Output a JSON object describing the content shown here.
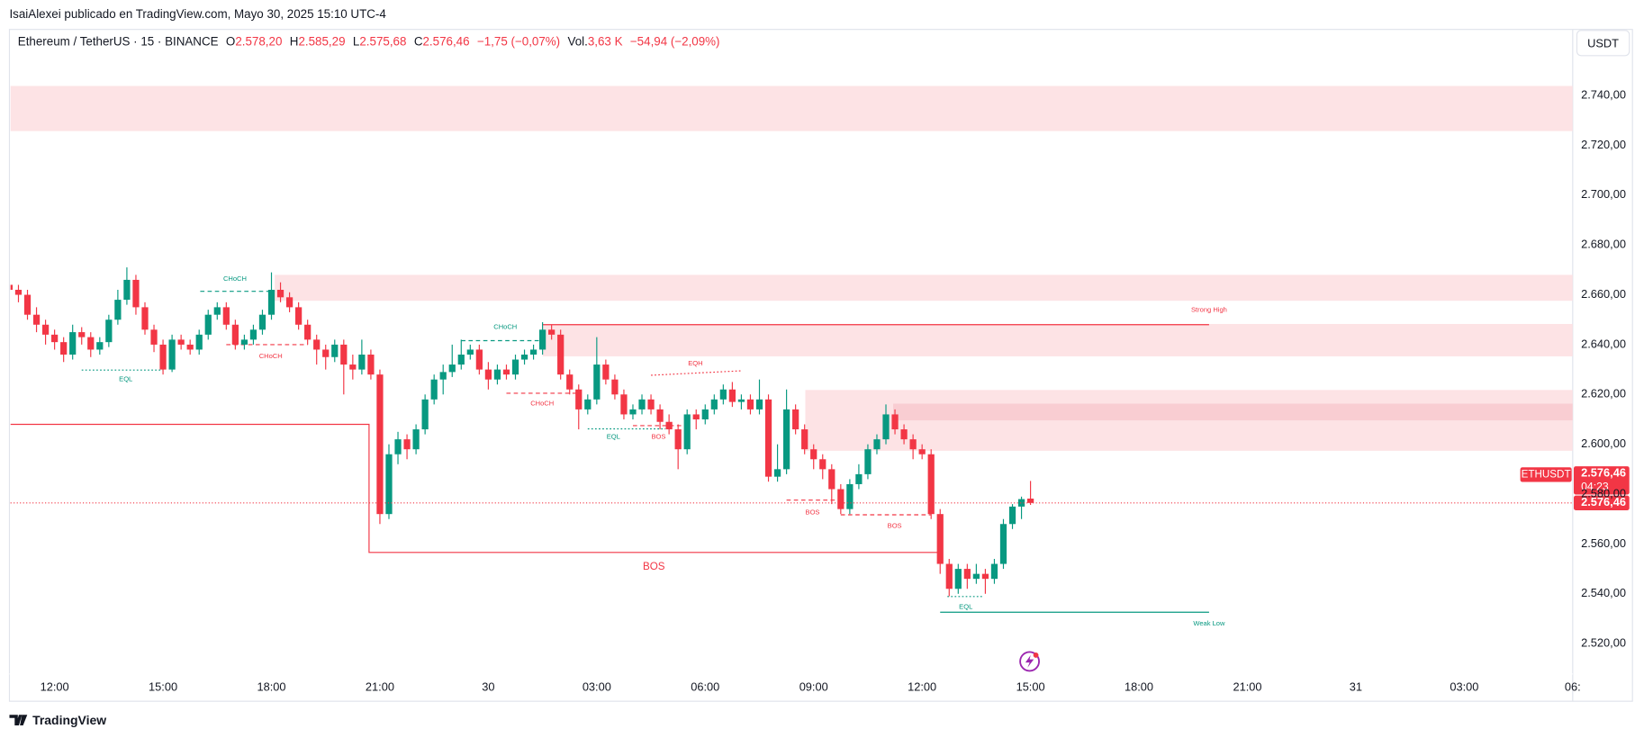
{
  "header": {
    "publisher": "IsaiAlexei publicado en TradingView.com, Mayo 30, 2025 15:10 UTC-4",
    "brand": "TradingView",
    "currency": "USDT"
  },
  "chart_data": {
    "type": "candlestick",
    "symbol": "Ethereum / TetherUS · 15 · BINANCE",
    "legend": {
      "o": "O",
      "o_value": "2.578,20",
      "h": "H",
      "h_value": "2.585,29",
      "l": "L",
      "l_value": "2.575,68",
      "c": "C",
      "c_value": "2.576,46",
      "change": "−1,75 (−0,07%)",
      "vol": "Vol.",
      "vol_value": "3,63 K",
      "vol_change": "−54,94 (−2,09%)"
    },
    "x": [
      10.75,
      11,
      11.25,
      11.5,
      11.75,
      12,
      12.25,
      12.5,
      12.75,
      13,
      13.25,
      13.5,
      13.75,
      14,
      14.25,
      14.5,
      14.75,
      15,
      15.25,
      15.5,
      15.75,
      16,
      16.25,
      16.5,
      16.75,
      17,
      17.25,
      17.5,
      17.75,
      18,
      18.25,
      18.5,
      18.75,
      19,
      19.25,
      19.5,
      19.75,
      20,
      20.25,
      20.5,
      20.75,
      21,
      21.25,
      21.5,
      21.75,
      22,
      22.25,
      22.5,
      22.75,
      23,
      23.25,
      23.5,
      23.75,
      24,
      24.25,
      24.5,
      24.75,
      25,
      25.25,
      25.5,
      25.75,
      26,
      26.25,
      26.5,
      26.75,
      27,
      27.25,
      27.5,
      27.75,
      28,
      28.25,
      28.5,
      28.75,
      29,
      29.25,
      29.5,
      29.75,
      30,
      30.25,
      30.5,
      30.75,
      31,
      31.25,
      31.5,
      31.75,
      32,
      32.25,
      32.5,
      32.75,
      33,
      33.25,
      33.5,
      33.75,
      34,
      34.25,
      34.5,
      34.75,
      35,
      35.25,
      35.5,
      35.75,
      36,
      36.25,
      36.5,
      36.75,
      37,
      37.25,
      37.5,
      37.75,
      38,
      38.25,
      38.5,
      38.75,
      39
    ],
    "candles": [
      [
        2664,
        2668,
        2659,
        2662
      ],
      [
        2662,
        2664,
        2657,
        2660
      ],
      [
        2660,
        2662,
        2650,
        2652
      ],
      [
        2652,
        2655,
        2645,
        2648
      ],
      [
        2648,
        2650,
        2640,
        2644
      ],
      [
        2644,
        2646,
        2638,
        2641
      ],
      [
        2641,
        2643,
        2633,
        2636
      ],
      [
        2636,
        2648,
        2634,
        2645
      ],
      [
        2645,
        2647,
        2640,
        2643
      ],
      [
        2643,
        2645,
        2635,
        2638
      ],
      [
        2638,
        2643,
        2636,
        2641
      ],
      [
        2641,
        2652,
        2639,
        2650
      ],
      [
        2650,
        2662,
        2648,
        2658
      ],
      [
        2658,
        2671,
        2656,
        2666
      ],
      [
        2666,
        2668,
        2652,
        2655
      ],
      [
        2655,
        2657,
        2644,
        2646
      ],
      [
        2646,
        2648,
        2637,
        2640
      ],
      [
        2640,
        2642,
        2628,
        2630
      ],
      [
        2630,
        2644,
        2629,
        2642
      ],
      [
        2642,
        2644,
        2638,
        2640
      ],
      [
        2640,
        2642,
        2636,
        2638
      ],
      [
        2638,
        2646,
        2636,
        2644
      ],
      [
        2644,
        2654,
        2642,
        2652
      ],
      [
        2652,
        2657,
        2650,
        2655
      ],
      [
        2655,
        2657,
        2646,
        2648
      ],
      [
        2648,
        2650,
        2638,
        2640
      ],
      [
        2640,
        2644,
        2638,
        2642
      ],
      [
        2642,
        2648,
        2640,
        2646
      ],
      [
        2646,
        2654,
        2644,
        2652
      ],
      [
        2652,
        2669,
        2650,
        2662
      ],
      [
        2662,
        2665,
        2657,
        2659
      ],
      [
        2659,
        2661,
        2653,
        2655
      ],
      [
        2655,
        2657,
        2646,
        2648
      ],
      [
        2648,
        2650,
        2640,
        2642
      ],
      [
        2642,
        2644,
        2632,
        2638
      ],
      [
        2638,
        2640,
        2630,
        2635
      ],
      [
        2635,
        2642,
        2633,
        2640
      ],
      [
        2640,
        2642,
        2620,
        2632
      ],
      [
        2632,
        2636,
        2626,
        2630
      ],
      [
        2630,
        2642,
        2628,
        2636
      ],
      [
        2636,
        2638,
        2626,
        2628
      ],
      [
        2628,
        2630,
        2568,
        2572
      ],
      [
        2572,
        2600,
        2570,
        2596
      ],
      [
        2596,
        2605,
        2592,
        2602
      ],
      [
        2602,
        2604,
        2594,
        2598
      ],
      [
        2598,
        2608,
        2596,
        2606
      ],
      [
        2606,
        2620,
        2604,
        2618
      ],
      [
        2618,
        2628,
        2616,
        2626
      ],
      [
        2626,
        2632,
        2620,
        2629
      ],
      [
        2629,
        2640,
        2627,
        2632
      ],
      [
        2632,
        2642,
        2630,
        2636
      ],
      [
        2636,
        2640,
        2634,
        2638
      ],
      [
        2638,
        2640,
        2628,
        2630
      ],
      [
        2630,
        2633,
        2622,
        2626
      ],
      [
        2626,
        2632,
        2624,
        2630
      ],
      [
        2630,
        2632,
        2626,
        2628
      ],
      [
        2628,
        2636,
        2626,
        2634
      ],
      [
        2634,
        2638,
        2632,
        2636
      ],
      [
        2636,
        2640,
        2634,
        2638
      ],
      [
        2638,
        2649,
        2636,
        2646
      ],
      [
        2646,
        2648,
        2642,
        2644
      ],
      [
        2644,
        2646,
        2626,
        2628
      ],
      [
        2628,
        2630,
        2620,
        2622
      ],
      [
        2622,
        2624,
        2606,
        2614
      ],
      [
        2614,
        2620,
        2612,
        2618
      ],
      [
        2618,
        2643,
        2616,
        2632
      ],
      [
        2632,
        2634,
        2624,
        2626
      ],
      [
        2626,
        2628,
        2618,
        2620
      ],
      [
        2620,
        2622,
        2610,
        2612
      ],
      [
        2612,
        2616,
        2610,
        2614
      ],
      [
        2614,
        2620,
        2612,
        2618
      ],
      [
        2618,
        2620,
        2612,
        2614
      ],
      [
        2614,
        2616,
        2606,
        2609
      ],
      [
        2609,
        2612,
        2604,
        2606
      ],
      [
        2606,
        2608,
        2590,
        2598
      ],
      [
        2598,
        2614,
        2596,
        2612
      ],
      [
        2612,
        2614,
        2606,
        2610
      ],
      [
        2610,
        2616,
        2608,
        2614
      ],
      [
        2614,
        2620,
        2612,
        2618
      ],
      [
        2618,
        2624,
        2616,
        2622
      ],
      [
        2622,
        2625,
        2615,
        2617
      ],
      [
        2617,
        2620,
        2614,
        2618
      ],
      [
        2618,
        2620,
        2612,
        2614
      ],
      [
        2614,
        2626,
        2612,
        2618
      ],
      [
        2618,
        2620,
        2585,
        2587
      ],
      [
        2587,
        2600,
        2585,
        2590
      ],
      [
        2590,
        2622,
        2588,
        2614
      ],
      [
        2614,
        2616,
        2604,
        2606
      ],
      [
        2606,
        2608,
        2596,
        2598
      ],
      [
        2598,
        2600,
        2590,
        2594
      ],
      [
        2594,
        2596,
        2586,
        2590
      ],
      [
        2590,
        2592,
        2576,
        2582
      ],
      [
        2582,
        2584,
        2572,
        2574
      ],
      [
        2574,
        2586,
        2572,
        2584
      ],
      [
        2584,
        2592,
        2582,
        2588
      ],
      [
        2588,
        2600,
        2586,
        2598
      ],
      [
        2598,
        2604,
        2596,
        2602
      ],
      [
        2602,
        2616,
        2600,
        2612
      ],
      [
        2612,
        2614,
        2604,
        2606
      ],
      [
        2606,
        2608,
        2600,
        2602
      ],
      [
        2602,
        2604,
        2594,
        2598
      ],
      [
        2598,
        2600,
        2594,
        2596
      ],
      [
        2596,
        2598,
        2570,
        2572
      ],
      [
        2572,
        2574,
        2548,
        2552
      ],
      [
        2552,
        2554,
        2539,
        2542
      ],
      [
        2542,
        2552,
        2540,
        2550
      ],
      [
        2550,
        2552,
        2542,
        2546
      ],
      [
        2546,
        2552,
        2544,
        2548
      ],
      [
        2548,
        2550,
        2540,
        2546
      ],
      [
        2546,
        2554,
        2544,
        2552
      ],
      [
        2552,
        2570,
        2550,
        2568
      ],
      [
        2568,
        2576,
        2566,
        2575
      ],
      [
        2575,
        2579,
        2570,
        2578
      ],
      [
        2578.2,
        2585.29,
        2575.68,
        2576.46
      ]
    ],
    "up_color": "#089981",
    "down_color": "#f23645",
    "xlim": [
      10.78,
      54
    ],
    "xticks": [
      {
        "value": 12,
        "label": "12:00"
      },
      {
        "value": 15,
        "label": "15:00"
      },
      {
        "value": 18,
        "label": "18:00"
      },
      {
        "value": 21,
        "label": "21:00"
      },
      {
        "value": 24,
        "label": "30"
      },
      {
        "value": 27,
        "label": "03:00"
      },
      {
        "value": 30,
        "label": "06:00"
      },
      {
        "value": 33,
        "label": "09:00"
      },
      {
        "value": 36,
        "label": "12:00"
      },
      {
        "value": 39,
        "label": "15:00"
      },
      {
        "value": 42,
        "label": "18:00"
      },
      {
        "value": 45,
        "label": "21:00"
      },
      {
        "value": 48,
        "label": "31"
      },
      {
        "value": 51,
        "label": "03:00"
      },
      {
        "value": 54,
        "label": "06:"
      }
    ],
    "ylim": [
      2497.3,
      2766.5
    ],
    "yticks": [
      {
        "value": 2520,
        "label": "2.520,00"
      },
      {
        "value": 2540,
        "label": "2.540,00"
      },
      {
        "value": 2560,
        "label": "2.560,00"
      },
      {
        "value": 2580,
        "label": "2.580,00"
      },
      {
        "value": 2600,
        "label": "2.600,00"
      },
      {
        "value": 2620,
        "label": "2.620,00"
      },
      {
        "value": 2640,
        "label": "2.640,00"
      },
      {
        "value": 2660,
        "label": "2.660,00"
      },
      {
        "value": 2680,
        "label": "2.680,00"
      },
      {
        "value": 2700,
        "label": "2.700,00"
      },
      {
        "value": 2720,
        "label": "2.720,00"
      },
      {
        "value": 2740,
        "label": "2.740,00"
      }
    ],
    "zones": [
      {
        "x": [
          10.78,
          54
        ],
        "y": [
          2725.7,
          2743.8
        ],
        "color": "#fde3e5"
      },
      {
        "x": [
          18.09,
          54
        ],
        "y": [
          2657.6,
          2668
        ],
        "color": "#fde3e5"
      },
      {
        "x": [
          25.5,
          54
        ],
        "y": [
          2635.3,
          2648.3
        ],
        "color": "#fde3e5"
      },
      {
        "x": [
          32.77,
          54
        ],
        "y": [
          2597.4,
          2621.8
        ],
        "color": "#fde3e5"
      },
      {
        "x": [
          35.2,
          54
        ],
        "y": [
          2609.6,
          2616.3
        ],
        "color": "#f9cdd2"
      }
    ],
    "lines": [
      {
        "x": [
          10.78,
          20.7,
          20.7,
          36.46
        ],
        "y": [
          2608,
          2608,
          2556.6,
          2556.6
        ],
        "color": "#f23645",
        "style": "solid",
        "label": "BOS"
      },
      {
        "x": [
          25.5,
          43.94
        ],
        "y": [
          2648,
          2648
        ],
        "color": "#f23645",
        "style": "solid"
      },
      {
        "x": [
          36.5,
          43.94
        ],
        "y": [
          2532.6,
          2532.6
        ],
        "color": "#089981",
        "style": "solid"
      },
      {
        "x": [
          16.03,
          18.09
        ],
        "y": [
          2661.4,
          2661.4
        ],
        "color": "#089981",
        "style": "dashed"
      },
      {
        "x": [
          12.75,
          15
        ],
        "y": [
          2629.8,
          2629.8
        ],
        "color": "#089981",
        "style": "dotted"
      },
      {
        "x": [
          16.75,
          19
        ],
        "y": [
          2640,
          2640
        ],
        "color": "#f23645",
        "style": "dashed"
      },
      {
        "x": [
          23.25,
          25.5
        ],
        "y": [
          2641.6,
          2641.6
        ],
        "color": "#089981",
        "style": "dashed"
      },
      {
        "x": [
          24.5,
          26.5
        ],
        "y": [
          2620.5,
          2620.5
        ],
        "color": "#f23645",
        "style": "dashed"
      },
      {
        "x": [
          28.5,
          31
        ],
        "y": [
          2627.7,
          2629.5
        ],
        "color": "#f23645",
        "style": "dotted"
      },
      {
        "x": [
          26.75,
          28.9
        ],
        "y": [
          2606.2,
          2606.2
        ],
        "color": "#089981",
        "style": "dotted"
      },
      {
        "x": [
          28,
          29.55
        ],
        "y": [
          2607.5,
          2607.5
        ],
        "color": "#f23645",
        "style": "dashed"
      },
      {
        "x": [
          32.25,
          33.75
        ],
        "y": [
          2577.6,
          2577.6
        ],
        "color": "#f23645",
        "style": "dashed"
      },
      {
        "x": [
          33.75,
          36.25
        ],
        "y": [
          2571.7,
          2571.7
        ],
        "color": "#f23645",
        "style": "dashed"
      },
      {
        "x": [
          36.7,
          37.7
        ],
        "y": [
          2538.9,
          2538.9
        ],
        "color": "#089981",
        "style": "dotted"
      }
    ],
    "annotations": [
      {
        "text": "CHoCH",
        "x": 16.99,
        "y": 2666.4,
        "color": "#089981"
      },
      {
        "text": "EQL",
        "x": 13.97,
        "y": 2626,
        "color": "#089981"
      },
      {
        "text": "CHoCH",
        "x": 17.98,
        "y": 2635.3,
        "color": "#f23645"
      },
      {
        "text": "CHoCH",
        "x": 24.47,
        "y": 2647,
        "color": "#089981"
      },
      {
        "text": "CHoCH",
        "x": 25.49,
        "y": 2616.3,
        "color": "#f23645"
      },
      {
        "text": "EQH",
        "x": 29.73,
        "y": 2632.3,
        "color": "#f23645"
      },
      {
        "text": "EQL",
        "x": 27.46,
        "y": 2602.9,
        "color": "#089981"
      },
      {
        "text": "BOS",
        "x": 28.71,
        "y": 2602.9,
        "color": "#f23645"
      },
      {
        "text": "BOS",
        "x": 32.97,
        "y": 2572.6,
        "color": "#f23645"
      },
      {
        "text": "BOS",
        "x": 35.24,
        "y": 2567.1,
        "color": "#f23645"
      },
      {
        "text": "EQL",
        "x": 37.21,
        "y": 2534.7,
        "color": "#089981"
      },
      {
        "text": "Strong High",
        "x": 43.94,
        "y": 2653.8,
        "color": "#f23645"
      },
      {
        "text": "Weak Low",
        "x": 43.94,
        "y": 2528,
        "color": "#089981"
      }
    ],
    "last_price": 2576.46,
    "last_price_label": "2.576,46",
    "symbol_tag": "ETHUSDT",
    "countdown": "04:23"
  }
}
